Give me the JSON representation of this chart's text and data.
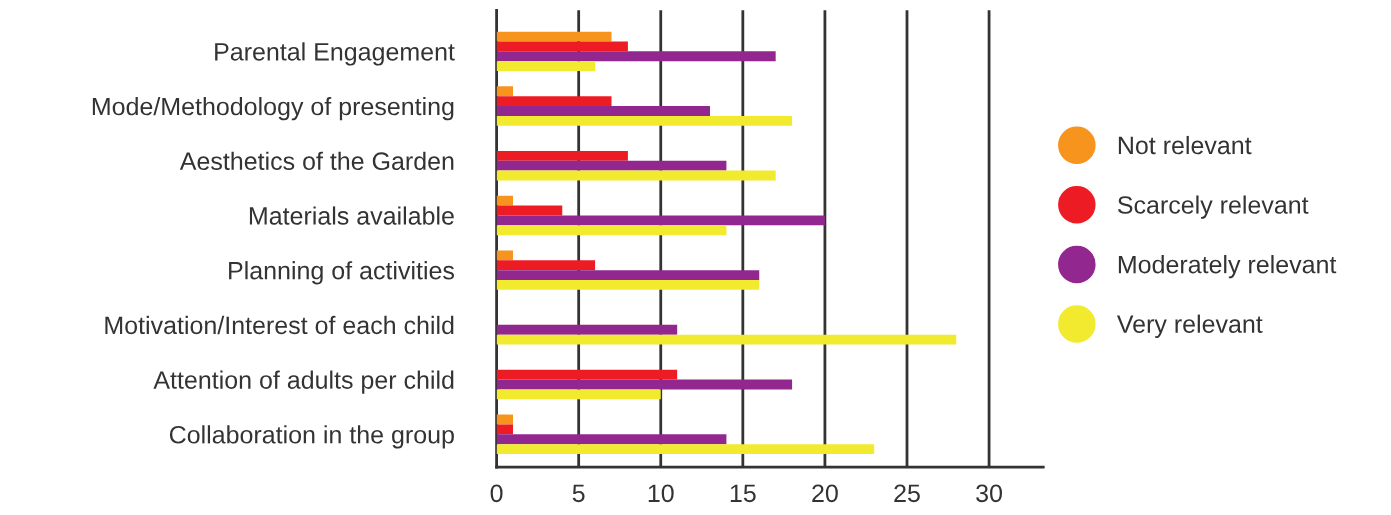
{
  "chart_data": {
    "type": "bar",
    "orientation": "horizontal",
    "categories": [
      "Parental Engagement",
      "Mode/Methodology of presenting",
      "Aesthetics of the Garden",
      "Materials available",
      "Planning of activities",
      "Motivation/Interest of each child",
      "Attention of adults per child",
      "Collaboration in the group"
    ],
    "series": [
      {
        "name": "Not relevant",
        "color": "#f7941d",
        "values": [
          7,
          1,
          0,
          1,
          1,
          0,
          0,
          1
        ]
      },
      {
        "name": "Scarcely relevant",
        "color": "#ed1c24",
        "values": [
          8,
          7,
          8,
          4,
          6,
          0,
          11,
          1
        ]
      },
      {
        "name": "Moderately relevant",
        "color": "#92278f",
        "values": [
          17,
          13,
          14,
          20,
          16,
          11,
          18,
          14
        ]
      },
      {
        "name": "Very relevant",
        "color": "#f2ea2e",
        "values": [
          6,
          18,
          17,
          14,
          16,
          28,
          10,
          23
        ]
      }
    ],
    "xlim": [
      0,
      33.3
    ],
    "xticks": [
      0,
      5,
      10,
      15,
      20,
      25,
      30
    ],
    "grid": "x",
    "legend": "right"
  }
}
